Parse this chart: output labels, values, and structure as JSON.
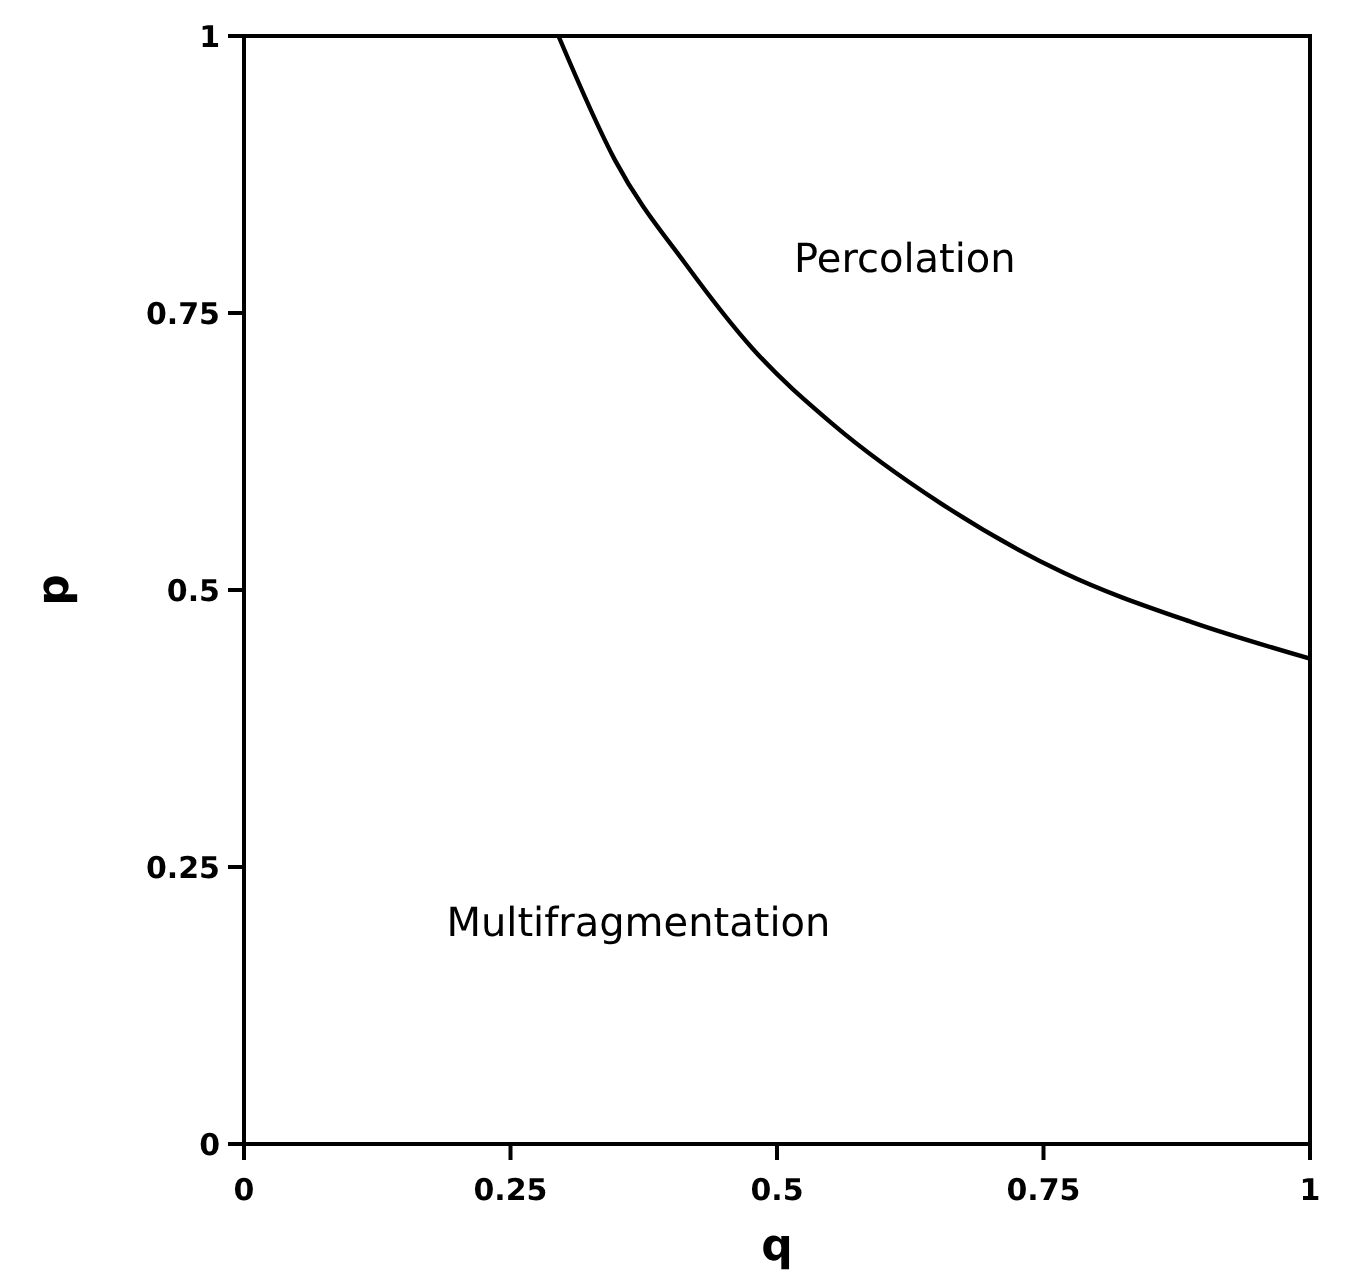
{
  "chart_data": {
    "type": "line",
    "xlabel": "q",
    "ylabel": "p",
    "xlim": [
      0,
      1
    ],
    "ylim": [
      0,
      1
    ],
    "xticks": [
      0,
      0.25,
      0.5,
      0.75,
      1
    ],
    "yticks": [
      0,
      0.25,
      0.5,
      0.75,
      1
    ],
    "grid": false,
    "marker": "none",
    "line_style": "solid",
    "series": [
      {
        "color": "#000000",
        "x": [
          0.295,
          0.348,
          0.416,
          0.477,
          0.552,
          0.654,
          0.768,
          0.889,
          1
        ],
        "values": [
          1,
          0.888,
          0.792,
          0.718,
          0.65,
          0.578,
          0.516,
          0.471,
          0.438
        ]
      }
    ],
    "annotations": [
      "Percolation",
      "Multifragmentation"
    ]
  }
}
